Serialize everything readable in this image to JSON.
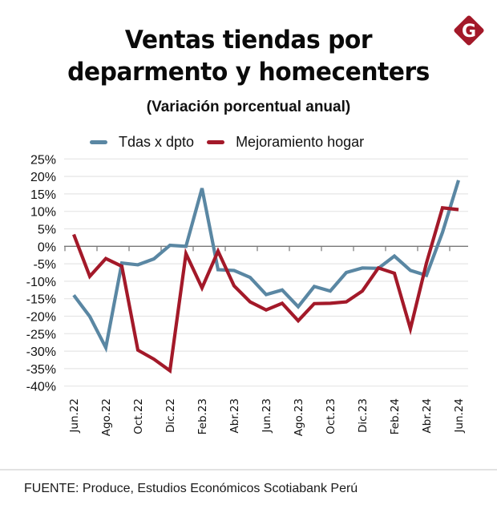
{
  "header": {
    "title_line1": "Ventas tiendas por",
    "title_line2": "deparmento y homecenters",
    "subtitle": "(Variación porcentual anual)",
    "logo_letter": "G",
    "logo_color": "#a31929"
  },
  "footer": {
    "source": "FUENTE: Produce, Estudios Económicos Scotiabank Perú"
  },
  "chart_data": {
    "type": "line",
    "title": "Ventas tiendas por deparmento y homecenters",
    "subtitle": "(Variación porcentual anual)",
    "xlabel": "",
    "ylabel": "",
    "ylim": [
      -40,
      25
    ],
    "yticks": [
      25,
      20,
      15,
      10,
      5,
      0,
      -5,
      -10,
      -15,
      -20,
      -25,
      -30,
      -35,
      -40
    ],
    "ytick_labels": [
      "25%",
      "20%",
      "15%",
      "10%",
      "5%",
      "0%",
      "-5%",
      "-10%",
      "-15%",
      "-20%",
      "-25%",
      "-30%",
      "-35%",
      "-40%"
    ],
    "grid": true,
    "legend_position": "top",
    "x": [
      "Jun.22",
      "Jul.22",
      "Ago.22",
      "Set.22",
      "Oct.22",
      "Nov.22",
      "Dic.22",
      "Ene.23",
      "Feb.23",
      "Mar.23",
      "Abr.23",
      "May.23",
      "Jun.23",
      "Jul.23",
      "Ago.23",
      "Set.23",
      "Oct.23",
      "Nov.23",
      "Dic.23",
      "Ene.24",
      "Feb.24",
      "Mar.24",
      "Abr.24",
      "May.24",
      "Jun.24"
    ],
    "xtick_labels": [
      "Jun.22",
      "Ago.22",
      "Oct.22",
      "Dic.22",
      "Feb.23",
      "Abr.23",
      "Jun.23",
      "Ago.23",
      "Oct.23",
      "Dic.23",
      "Feb.24",
      "Abr.24",
      "Jun.24"
    ],
    "series": [
      {
        "name": "Tdas x dpto",
        "color": "#5a87a3",
        "values": [
          -14.0,
          -20.1,
          -29.0,
          -4.8,
          -5.3,
          -3.6,
          0.3,
          0.0,
          16.6,
          -6.7,
          -6.9,
          -8.9,
          -13.8,
          -12.5,
          -17.3,
          -11.5,
          -12.8,
          -7.5,
          -6.2,
          -6.3,
          -2.8,
          -6.9,
          -8.3,
          4.0,
          18.9
        ]
      },
      {
        "name": "Mejoramiento hogar",
        "color": "#a31929",
        "values": [
          3.4,
          -8.6,
          -3.5,
          -5.7,
          -29.7,
          -32.3,
          -35.6,
          -2.1,
          -11.9,
          -1.4,
          -11.3,
          -15.9,
          -18.2,
          -16.3,
          -21.3,
          -16.4,
          -16.3,
          -15.9,
          -12.8,
          -6.2,
          -7.7,
          -23.6,
          -4.8,
          11.0,
          10.5
        ]
      }
    ]
  }
}
